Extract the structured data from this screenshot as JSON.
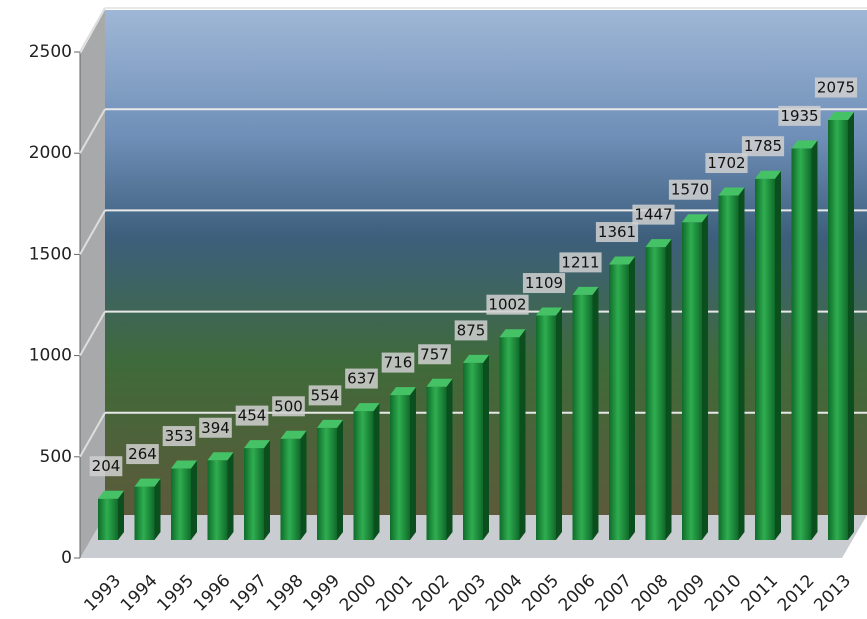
{
  "chart_data": {
    "type": "bar3d",
    "categories": [
      "1993",
      "1994",
      "1995",
      "1996",
      "1997",
      "1998",
      "1999",
      "2000",
      "2001",
      "2002",
      "2003",
      "2004",
      "2005",
      "2006",
      "2007",
      "2008",
      "2009",
      "2010",
      "2011",
      "2012",
      "2013"
    ],
    "values": [
      204,
      264,
      353,
      394,
      454,
      500,
      554,
      637,
      716,
      757,
      875,
      1002,
      1109,
      1211,
      1361,
      1447,
      1570,
      1702,
      1785,
      1935,
      2075
    ],
    "color": "#1f8f3c",
    "ylim": [
      0,
      2500
    ],
    "yticks": [
      0,
      500,
      1000,
      1500,
      2000,
      2500
    ],
    "grid": true
  }
}
